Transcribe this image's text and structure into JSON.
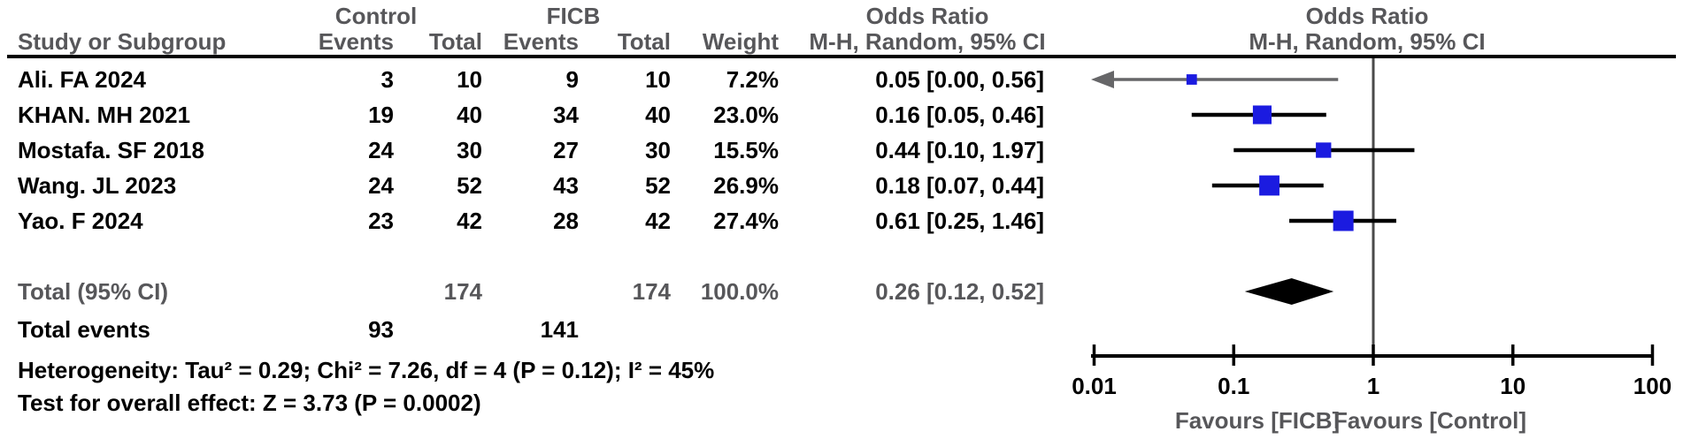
{
  "figure_title": "Forest plot — Odds Ratio, M-H Random effects (FICB vs Control)",
  "colors": {
    "marker_blue": "#1b1be0",
    "header_gray": "#57575a",
    "black": "#000000",
    "arrow_gray": "#666668",
    "null_line_gray": "#4a4a4a"
  },
  "chart_data": {
    "type": "forest",
    "effect_measure": "Odds Ratio",
    "method": "M-H, Random, 95% CI",
    "x_scale": "log",
    "x_range": [
      0.01,
      100
    ],
    "x_ticks": [
      "0.01",
      "0.1",
      "1",
      "10",
      "100"
    ],
    "null_value": 1,
    "favours_left": "Favours [FICB]",
    "favours_right": "Favours [Control]",
    "group_labels": {
      "control": "Control",
      "ficb": "FICB"
    },
    "column_labels": {
      "study": "Study or Subgroup",
      "events": "Events",
      "total": "Total",
      "weight": "Weight"
    },
    "studies": [
      {
        "name": "Ali. FA 2024",
        "control_events": "3",
        "control_total": "10",
        "ficb_events": "9",
        "ficb_total": "10",
        "weight": "7.2%",
        "weight_pct": 7.2,
        "or": 0.05,
        "ci_low": 0.0,
        "ci_high": 0.56,
        "ci_label": "0.05 [0.00, 0.56]",
        "off_scale_low": true
      },
      {
        "name": "KHAN. MH 2021",
        "control_events": "19",
        "control_total": "40",
        "ficb_events": "34",
        "ficb_total": "40",
        "weight": "23.0%",
        "weight_pct": 23.0,
        "or": 0.16,
        "ci_low": 0.05,
        "ci_high": 0.46,
        "ci_label": "0.16 [0.05, 0.46]",
        "off_scale_low": false
      },
      {
        "name": "Mostafa. SF 2018",
        "control_events": "24",
        "control_total": "30",
        "ficb_events": "27",
        "ficb_total": "30",
        "weight": "15.5%",
        "weight_pct": 15.5,
        "or": 0.44,
        "ci_low": 0.1,
        "ci_high": 1.97,
        "ci_label": "0.44 [0.10, 1.97]",
        "off_scale_low": false
      },
      {
        "name": "Wang. JL 2023",
        "control_events": "24",
        "control_total": "52",
        "ficb_events": "43",
        "ficb_total": "52",
        "weight": "26.9%",
        "weight_pct": 26.9,
        "or": 0.18,
        "ci_low": 0.07,
        "ci_high": 0.44,
        "ci_label": "0.18 [0.07, 0.44]",
        "off_scale_low": false
      },
      {
        "name": "Yao. F 2024",
        "control_events": "23",
        "control_total": "42",
        "ficb_events": "28",
        "ficb_total": "42",
        "weight": "27.4%",
        "weight_pct": 27.4,
        "or": 0.61,
        "ci_low": 0.25,
        "ci_high": 1.46,
        "ci_label": "0.61 [0.25, 1.46]",
        "off_scale_low": false
      }
    ],
    "total": {
      "label": "Total (95% CI)",
      "control_total": "174",
      "ficb_total": "174",
      "weight": "100.0%",
      "or": 0.26,
      "ci_low": 0.12,
      "ci_high": 0.52,
      "ci_label": "0.26 [0.12, 0.52]"
    },
    "total_events": {
      "label": "Total events",
      "control": "93",
      "ficb": "141"
    },
    "heterogeneity": "Heterogeneity: Tau² = 0.29; Chi² = 7.26, df = 4 (P = 0.12); I² = 45%",
    "overall_effect": "Test for overall effect: Z = 3.73 (P = 0.0002)"
  }
}
